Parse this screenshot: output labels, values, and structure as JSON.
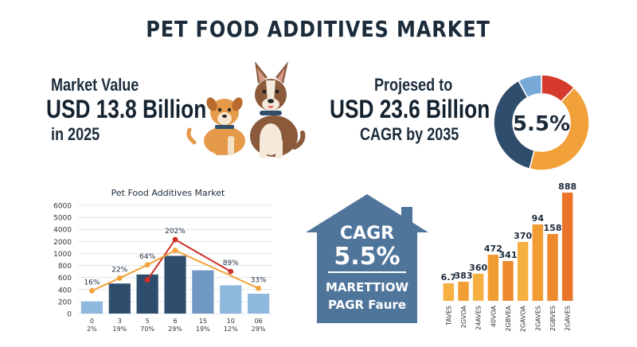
{
  "title": "PET FOOD ADDITIVES MARKET",
  "market_value": {
    "label": "Market Value",
    "amount": "USD 13.8 Billion",
    "year": "in 2025"
  },
  "projection": {
    "label": "Projesed to",
    "amount": "USD 23.6 Billion",
    "cagr_line": "CAGR by 2035"
  },
  "donut": {
    "center_text": "5.5%",
    "segments": [
      {
        "name": "orange",
        "value": 42,
        "color": "#f2a03a"
      },
      {
        "name": "navy",
        "value": 38,
        "color": "#2f4d6c"
      },
      {
        "name": "lightblue",
        "value": 8,
        "color": "#78a9d6"
      },
      {
        "name": "red",
        "value": 12,
        "color": "#d63a2e"
      }
    ]
  },
  "house": {
    "title": "CAGR",
    "value": "5.5%",
    "caption_line1": "MARETTIOW",
    "caption_line2": "PAGR Faure"
  },
  "colors": {
    "title": "#1c2b3a",
    "bar_light": "#8fb8de",
    "bar_dark": "#2f4d6c",
    "line_red": "#cf3027",
    "line_orange": "#f2a33a",
    "house": "#4f759b"
  },
  "chart_data": [
    {
      "type": "bar",
      "title": "Pet Food Additives Market",
      "categories": [
        "0",
        "3",
        "5",
        "6",
        "15",
        "10",
        "06"
      ],
      "category_sublabels": [
        "2%",
        "19%",
        "70%",
        "29%",
        "19%",
        "12%",
        "29%"
      ],
      "yticks": [
        "0",
        "200",
        "400",
        "600",
        "800",
        "1000",
        "2000",
        "4000",
        "5000",
        "6000"
      ],
      "series": [
        {
          "kind": "bar",
          "values": [
            200,
            500,
            650,
            960,
            720,
            470,
            330
          ]
        },
        {
          "kind": "line",
          "color": "#cf3027",
          "values": [
            null,
            null,
            560,
            2300,
            null,
            700,
            null
          ]
        },
        {
          "kind": "line",
          "color": "#f2a33a",
          "values": [
            380,
            590,
            810,
            1250,
            null,
            null,
            420
          ]
        }
      ],
      "point_labels": [
        "16%",
        "22%",
        "64%",
        "202%",
        "89%",
        "33%"
      ],
      "grid": true
    },
    {
      "type": "bar",
      "title": "",
      "categories": [
        "TAVES",
        "2GVOA",
        "24AVES",
        "40VOA",
        "2GBVEA",
        "2GAVOA",
        "2GAVES",
        "2GBVES",
        "2GAVES"
      ],
      "values": [
        6.7,
        383,
        360,
        472,
        341,
        370,
        94,
        158,
        888
      ],
      "value_labels": [
        "6.7",
        "383",
        "360",
        "472",
        "341",
        "370",
        "94",
        "158",
        "888"
      ]
    }
  ]
}
